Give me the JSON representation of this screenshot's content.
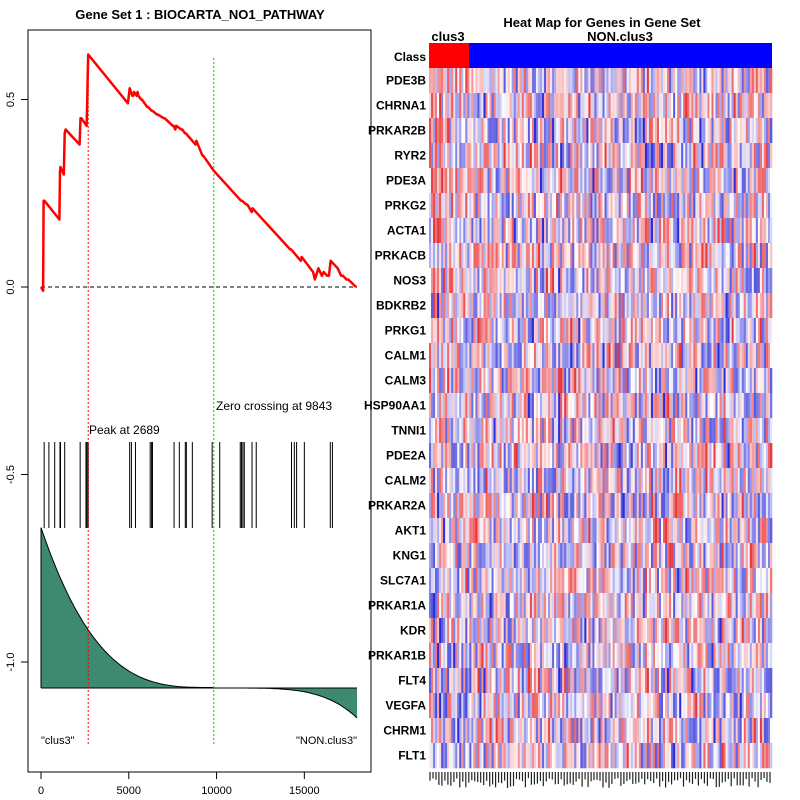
{
  "left_title": "Gene Set  1 : BIOCARTA_NO1_PATHWAY",
  "right_title": "Heat Map for Genes in Gene Set",
  "peak_label": "Peak at 2689",
  "zero_label": "Zero crossing at 9843",
  "left_end_label": "\"clus3\"",
  "right_end_label": "\"NON.clus3\"",
  "class_label": "Class",
  "group_a": "clus3",
  "group_b": "NON.clus3",
  "colors": {
    "es_line": "#ff0000",
    "peak_line": "#ff0000",
    "zero_line": "#00cc00",
    "ranked_fill": "#3e8a6e",
    "class_a": "#ff0000",
    "class_b": "#0000ff",
    "heat_pos": "#e8383c",
    "heat_neg": "#2b2bd8"
  },
  "chart_data": [
    {
      "type": "line",
      "title": "Gene Set  1 : BIOCARTA_NO1_PATHWAY",
      "xlabel": "",
      "ylabel": "",
      "xlim": [
        0,
        18000
      ],
      "ylim": [
        -1.25,
        0.68
      ],
      "xticks": [
        0,
        5000,
        10000,
        15000
      ],
      "xtick_labels": [
        "0",
        "5000",
        "10000",
        "15000"
      ],
      "yticks": [
        -1.0,
        -0.5,
        0.0,
        0.5
      ],
      "ytick_labels": [
        "-1.0",
        "-0.5",
        "0.0",
        "0.5"
      ],
      "peak_x": 2689,
      "zero_crossing_x": 9843,
      "es_curve": {
        "x": [
          0,
          120,
          150,
          200,
          1050,
          1080,
          1110,
          1300,
          1350,
          1400,
          2200,
          2250,
          2300,
          2600,
          2630,
          2660,
          2689,
          4950,
          5000,
          5050,
          5200,
          5250,
          5300,
          5450,
          5500,
          5550,
          5700,
          5750,
          6050,
          6100,
          6300,
          6350,
          6600,
          6650,
          7000,
          7050,
          7500,
          7550,
          7650,
          7700,
          8000,
          8050,
          8200,
          8250,
          8800,
          8850,
          9200,
          9250,
          9843,
          11400,
          11450,
          11700,
          11750,
          12000,
          12050,
          14200,
          14250,
          14800,
          14850,
          15500,
          15600,
          15800,
          16000,
          16100,
          16300,
          16400,
          16500,
          16900,
          17100,
          17200,
          17400,
          17500,
          17950
        ],
        "y": [
          0.0,
          -0.01,
          0.23,
          0.23,
          0.18,
          0.31,
          0.32,
          0.3,
          0.41,
          0.42,
          0.38,
          0.45,
          0.45,
          0.43,
          0.49,
          0.56,
          0.62,
          0.49,
          0.51,
          0.53,
          0.51,
          0.51,
          0.52,
          0.51,
          0.52,
          0.51,
          0.5,
          0.5,
          0.48,
          0.48,
          0.47,
          0.47,
          0.46,
          0.46,
          0.45,
          0.45,
          0.43,
          0.43,
          0.42,
          0.43,
          0.42,
          0.42,
          0.41,
          0.41,
          0.38,
          0.39,
          0.35,
          0.35,
          0.31,
          0.23,
          0.23,
          0.22,
          0.22,
          0.2,
          0.21,
          0.1,
          0.1,
          0.07,
          0.08,
          0.04,
          0.02,
          0.05,
          0.03,
          0.04,
          0.03,
          0.03,
          0.07,
          0.05,
          0.03,
          0.03,
          0.02,
          0.02,
          0.0
        ]
      },
      "gene_hits": [
        180,
        450,
        780,
        1080,
        1110,
        1350,
        2230,
        2560,
        2620,
        2689,
        5050,
        5150,
        5380,
        6220,
        6300,
        6350,
        7580,
        7880,
        8220,
        8280,
        8620,
        9750,
        10180,
        11350,
        11420,
        11500,
        11580,
        12020,
        12260,
        14270,
        14430,
        14560,
        15000,
        16480,
        16600
      ],
      "ranked_metric": "decreasing correlation profile, zero near x = 9843"
    },
    {
      "type": "heatmap",
      "title": "Heat Map for Genes in Gene Set",
      "column_groups": [
        {
          "name": "clus3",
          "fraction": 0.125
        },
        {
          "name": "NON.clus3",
          "fraction": 0.875
        }
      ],
      "rows": [
        "PDE3B",
        "CHRNA1",
        "PRKAR2B",
        "RYR2",
        "PDE3A",
        "PRKG2",
        "ACTA1",
        "PRKACB",
        "NOS3",
        "BDKRB2",
        "PRKG1",
        "CALM1",
        "CALM3",
        "HSP90AA1",
        "TNNI1",
        "PDE2A",
        "CALM2",
        "PRKAR2A",
        "AKT1",
        "KNG1",
        "SLC7A1",
        "PRKAR1A",
        "KDR",
        "PRKAR1B",
        "FLT4",
        "VEGFA",
        "CHRM1",
        "FLT1"
      ]
    }
  ]
}
